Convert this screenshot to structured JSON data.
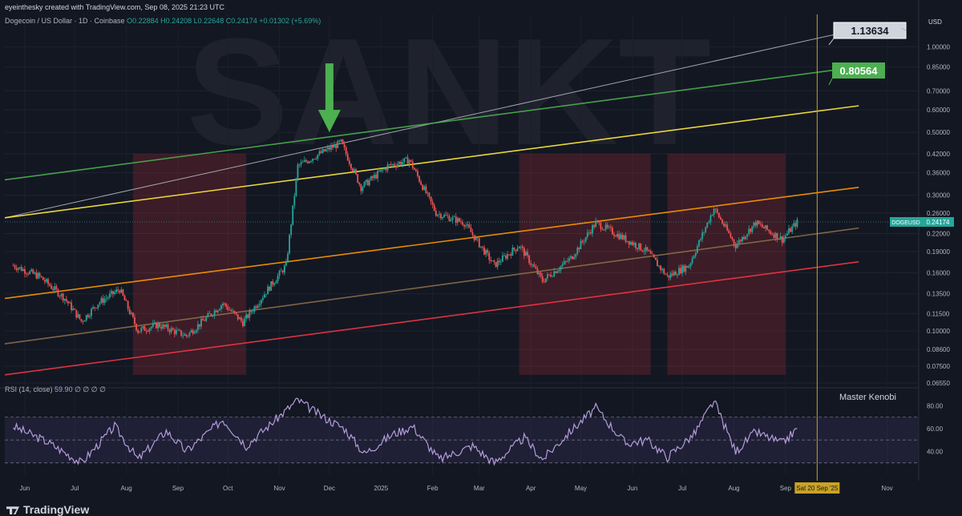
{
  "header": {
    "credit": "eyeinthesky created with TradingView.com, Sep 08, 2025 21:23 UTC",
    "symbol": "Dogecoin / US Dollar · 1D · Coinbase",
    "ohlc": "O0.22884 H0.24208 L0.22648 C0.24174 +0.01302 (+5.69%)",
    "watermark": "SANKT"
  },
  "price_axis": {
    "currency": "USD",
    "ticks": [
      "1.00000",
      "0.85000",
      "0.70000",
      "0.60000",
      "0.50000",
      "0.42000",
      "0.36000",
      "0.30000",
      "0.26000",
      "0.22000",
      "0.19000",
      "0.16000",
      "0.13500",
      "0.11500",
      "0.10000",
      "0.08600",
      "0.07500",
      "0.06550"
    ],
    "last_symbol": "DOGEUSD",
    "last_price": "0.24174",
    "callouts": [
      {
        "label": "1.13634",
        "color": "#b2b5be"
      },
      {
        "label": "0.80564",
        "color": "#4caf50"
      }
    ]
  },
  "time_axis": {
    "labels": [
      "Jun",
      "Jul",
      "Aug",
      "Sep",
      "Oct",
      "Nov",
      "Dec",
      "2025",
      "Feb",
      "Mar",
      "Apr",
      "May",
      "Jun",
      "Jul",
      "Aug",
      "Sep",
      "Nov"
    ],
    "cursor_label": "Sat 20 Sep '25"
  },
  "rsi": {
    "label": "RSI (14, close)",
    "value": "59.90",
    "placeholders": "∅ ∅ ∅ ∅",
    "ticks": [
      "80.00",
      "60.00",
      "40.00"
    ],
    "upper": 70,
    "lower": 30
  },
  "author": "Master Kenobi",
  "brand": "TradingView",
  "colors": {
    "up": "#26a69a",
    "down": "#ef5350",
    "rsi": "#b39ddb",
    "green_line": "#4caf50",
    "yellow_line": "#ffeb3b",
    "orange_line": "#ff9800",
    "red_line": "#f23645",
    "cursor": "#c9a227",
    "zone": "#f2364533"
  },
  "chart_data": {
    "type": "candlestick",
    "title": "Dogecoin / US Dollar · 1D · Coinbase",
    "y_scale": "log",
    "ylim": [
      0.0655,
      1.3
    ],
    "xlim": [
      "2024-05-20",
      "2025-11-20"
    ],
    "price_points": [
      {
        "date": "2024-05-25",
        "close": 0.17
      },
      {
        "date": "2024-06-10",
        "close": 0.155
      },
      {
        "date": "2024-06-25",
        "close": 0.13
      },
      {
        "date": "2024-07-05",
        "close": 0.108
      },
      {
        "date": "2024-07-15",
        "close": 0.125
      },
      {
        "date": "2024-07-28",
        "close": 0.14
      },
      {
        "date": "2024-08-08",
        "close": 0.1
      },
      {
        "date": "2024-08-20",
        "close": 0.105
      },
      {
        "date": "2024-09-06",
        "close": 0.096
      },
      {
        "date": "2024-09-28",
        "close": 0.125
      },
      {
        "date": "2024-10-10",
        "close": 0.107
      },
      {
        "date": "2024-10-25",
        "close": 0.14
      },
      {
        "date": "2024-11-05",
        "close": 0.17
      },
      {
        "date": "2024-11-12",
        "close": 0.38
      },
      {
        "date": "2024-11-25",
        "close": 0.42
      },
      {
        "date": "2024-12-08",
        "close": 0.46
      },
      {
        "date": "2024-12-20",
        "close": 0.32
      },
      {
        "date": "2025-01-05",
        "close": 0.38
      },
      {
        "date": "2025-01-18",
        "close": 0.4
      },
      {
        "date": "2025-02-03",
        "close": 0.26
      },
      {
        "date": "2025-02-20",
        "close": 0.24
      },
      {
        "date": "2025-03-10",
        "close": 0.17
      },
      {
        "date": "2025-03-25",
        "close": 0.2
      },
      {
        "date": "2025-04-08",
        "close": 0.15
      },
      {
        "date": "2025-04-25",
        "close": 0.18
      },
      {
        "date": "2025-05-10",
        "close": 0.24
      },
      {
        "date": "2025-05-28",
        "close": 0.21
      },
      {
        "date": "2025-06-10",
        "close": 0.19
      },
      {
        "date": "2025-06-22",
        "close": 0.155
      },
      {
        "date": "2025-07-05",
        "close": 0.17
      },
      {
        "date": "2025-07-20",
        "close": 0.27
      },
      {
        "date": "2025-08-02",
        "close": 0.2
      },
      {
        "date": "2025-08-14",
        "close": 0.24
      },
      {
        "date": "2025-08-30",
        "close": 0.21
      },
      {
        "date": "2025-09-08",
        "close": 0.24174
      }
    ],
    "rsi_points": [
      {
        "date": "2024-05-25",
        "value": 62
      },
      {
        "date": "2024-06-15",
        "value": 48
      },
      {
        "date": "2024-07-05",
        "value": 30
      },
      {
        "date": "2024-07-25",
        "value": 62
      },
      {
        "date": "2024-08-08",
        "value": 33
      },
      {
        "date": "2024-08-25",
        "value": 58
      },
      {
        "date": "2024-09-06",
        "value": 40
      },
      {
        "date": "2024-09-28",
        "value": 68
      },
      {
        "date": "2024-10-12",
        "value": 45
      },
      {
        "date": "2024-11-12",
        "value": 85
      },
      {
        "date": "2024-11-25",
        "value": 72
      },
      {
        "date": "2024-12-10",
        "value": 60
      },
      {
        "date": "2024-12-22",
        "value": 38
      },
      {
        "date": "2025-01-08",
        "value": 55
      },
      {
        "date": "2025-01-20",
        "value": 62
      },
      {
        "date": "2025-02-05",
        "value": 33
      },
      {
        "date": "2025-02-25",
        "value": 45
      },
      {
        "date": "2025-03-10",
        "value": 30
      },
      {
        "date": "2025-03-28",
        "value": 52
      },
      {
        "date": "2025-04-08",
        "value": 33
      },
      {
        "date": "2025-04-25",
        "value": 58
      },
      {
        "date": "2025-05-10",
        "value": 78
      },
      {
        "date": "2025-05-28",
        "value": 47
      },
      {
        "date": "2025-06-10",
        "value": 50
      },
      {
        "date": "2025-06-22",
        "value": 35
      },
      {
        "date": "2025-07-08",
        "value": 55
      },
      {
        "date": "2025-07-20",
        "value": 84
      },
      {
        "date": "2025-08-02",
        "value": 40
      },
      {
        "date": "2025-08-14",
        "value": 57
      },
      {
        "date": "2025-08-30",
        "value": 47
      },
      {
        "date": "2025-09-08",
        "value": 59.9
      }
    ],
    "trendlines": [
      {
        "color": "#b2b5be",
        "from": {
          "date": "2024-05-20",
          "price": 0.25
        },
        "to": {
          "date": "2025-10-10",
          "price": 1.13634
        }
      },
      {
        "color": "#4caf50",
        "from": {
          "date": "2024-05-20",
          "price": 0.34
        },
        "to": {
          "date": "2025-10-15",
          "price": 0.85
        }
      },
      {
        "color": "#ffeb3b",
        "from": {
          "date": "2024-05-20",
          "price": 0.25
        },
        "to": {
          "date": "2025-10-15",
          "price": 0.62
        }
      },
      {
        "color": "#ff9800",
        "from": {
          "date": "2024-05-20",
          "price": 0.13
        },
        "to": {
          "date": "2025-10-15",
          "price": 0.32
        }
      },
      {
        "color": "#8d6e4a",
        "from": {
          "date": "2024-05-20",
          "price": 0.09
        },
        "to": {
          "date": "2025-10-15",
          "price": 0.23
        }
      },
      {
        "color": "#f23645",
        "from": {
          "date": "2024-05-20",
          "price": 0.07
        },
        "to": {
          "date": "2025-10-15",
          "price": 0.175
        }
      }
    ],
    "zones": [
      {
        "from": "2024-08-05",
        "to": "2024-10-12",
        "top": 0.42,
        "bottom": 0.07
      },
      {
        "from": "2025-03-25",
        "to": "2025-06-12",
        "top": 0.42,
        "bottom": 0.07
      },
      {
        "from": "2025-06-22",
        "to": "2025-09-01",
        "top": 0.42,
        "bottom": 0.07
      }
    ],
    "arrow": {
      "date": "2024-12-01",
      "price": 0.5
    }
  }
}
